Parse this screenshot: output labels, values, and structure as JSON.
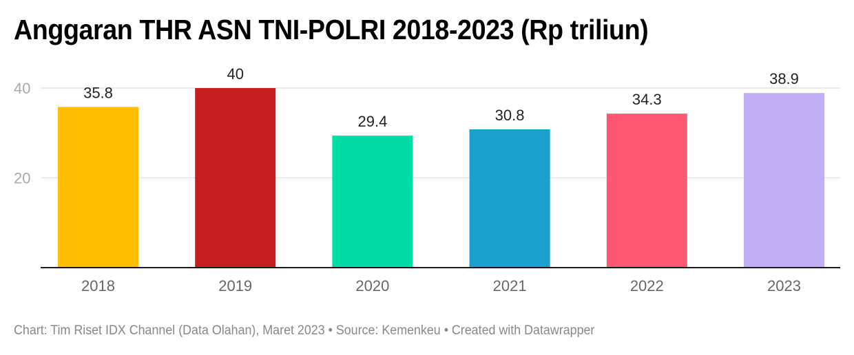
{
  "chart_data": {
    "type": "bar",
    "title": "Anggaran THR ASN TNI-POLRI 2018-2023 (Rp triliun)",
    "categories": [
      "2018",
      "2019",
      "2020",
      "2021",
      "2022",
      "2023"
    ],
    "values": [
      35.8,
      40,
      29.4,
      30.8,
      34.3,
      38.9
    ],
    "value_labels": [
      "35.8",
      "40",
      "29.4",
      "30.8",
      "34.3",
      "38.9"
    ],
    "colors": [
      "#FFBE00",
      "#C71E1D",
      "#00DCA6",
      "#18A1CD",
      "#FF5872",
      "#C1AFF6"
    ],
    "xlabel": "",
    "ylabel": "",
    "ylim": [
      0,
      40
    ],
    "yticks": [
      20,
      40
    ],
    "grid": true,
    "legend": "none"
  },
  "footer": {
    "text": "Chart: Tim Riset IDX Channel (Data Olahan), Maret 2023 • Source: Kemenkeu • Created with Datawrapper"
  }
}
